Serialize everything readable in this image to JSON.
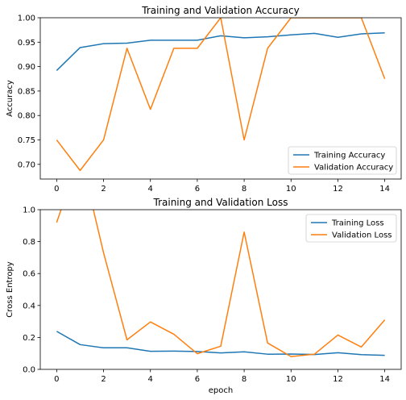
{
  "chart_data": [
    {
      "type": "line",
      "title": "Training and Validation Accuracy",
      "xlabel": "",
      "ylabel": "Accuracy",
      "xlim": [
        -0.7,
        14.7
      ],
      "ylim": [
        0.67,
        1.0
      ],
      "xticks": [
        0,
        2,
        4,
        6,
        8,
        10,
        12,
        14
      ],
      "yticks": [
        0.7,
        0.75,
        0.8,
        0.85,
        0.9,
        0.95,
        1.0
      ],
      "ytick_labels": [
        "0.70",
        "0.75",
        "0.80",
        "0.85",
        "0.90",
        "0.95",
        "1.00"
      ],
      "grid": false,
      "legend_position": "lower right",
      "x": [
        0,
        1,
        2,
        3,
        4,
        5,
        6,
        7,
        8,
        9,
        10,
        11,
        12,
        13,
        14
      ],
      "series": [
        {
          "name": "Training Accuracy",
          "color": "#1f77b4",
          "values": [
            0.892,
            0.939,
            0.947,
            0.948,
            0.954,
            0.954,
            0.954,
            0.963,
            0.959,
            0.961,
            0.965,
            0.968,
            0.96,
            0.967,
            0.969
          ]
        },
        {
          "name": "Validation Accuracy",
          "color": "#ff7f0e",
          "values": [
            0.75,
            0.6875,
            0.75,
            0.9375,
            0.8125,
            0.9375,
            0.9375,
            1.0,
            0.75,
            0.9375,
            1.0,
            1.0,
            1.0,
            1.0,
            0.875
          ]
        }
      ]
    },
    {
      "type": "line",
      "title": "Training and Validation Loss",
      "xlabel": "epoch",
      "ylabel": "Cross Entropy",
      "xlim": [
        -0.7,
        14.7
      ],
      "ylim": [
        0.0,
        1.0
      ],
      "xticks": [
        0,
        2,
        4,
        6,
        8,
        10,
        12,
        14
      ],
      "yticks": [
        0.0,
        0.2,
        0.4,
        0.6,
        0.8,
        1.0
      ],
      "ytick_labels": [
        "0.0",
        "0.2",
        "0.4",
        "0.6",
        "0.8",
        "1.0"
      ],
      "grid": false,
      "legend_position": "upper right",
      "x": [
        0,
        1,
        2,
        3,
        4,
        5,
        6,
        7,
        8,
        9,
        10,
        11,
        12,
        13,
        14
      ],
      "series": [
        {
          "name": "Training Loss",
          "color": "#1f77b4",
          "values": [
            0.238,
            0.155,
            0.135,
            0.135,
            0.113,
            0.114,
            0.112,
            0.103,
            0.11,
            0.095,
            0.096,
            0.093,
            0.104,
            0.092,
            0.088
          ]
        },
        {
          "name": "Validation Loss",
          "color": "#ff7f0e",
          "values": [
            0.92,
            1.35,
            0.73,
            0.185,
            0.297,
            0.22,
            0.098,
            0.145,
            0.86,
            0.165,
            0.08,
            0.095,
            0.215,
            0.14,
            0.31
          ]
        }
      ]
    }
  ]
}
